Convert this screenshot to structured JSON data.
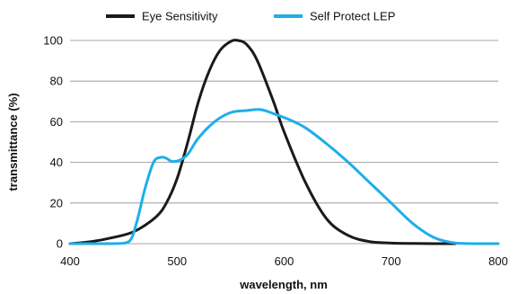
{
  "chart_data": {
    "type": "line",
    "title": "",
    "xlabel": "wavelength, nm",
    "ylabel": "transmittance (%)",
    "xlim": [
      400,
      800
    ],
    "ylim": [
      0,
      100
    ],
    "x_ticks": [
      400,
      500,
      600,
      700,
      800
    ],
    "y_ticks": [
      0,
      20,
      40,
      60,
      80,
      100
    ],
    "grid": "horizontal",
    "legend": "top",
    "series": [
      {
        "name": "Eye Sensitivity",
        "color": "#1a1a1a",
        "x": [
          400,
          420,
          440,
          460,
          480,
          490,
          500,
          510,
          520,
          530,
          540,
          550,
          557,
          565,
          575,
          590,
          600,
          620,
          640,
          660,
          680,
          700,
          720,
          740,
          760
        ],
        "y": [
          0,
          1,
          3,
          6,
          13,
          20,
          32,
          50,
          70,
          85,
          95,
          99.5,
          100,
          98,
          90,
          70,
          55,
          30,
          12,
          4,
          1,
          0.3,
          0.1,
          0,
          0
        ]
      },
      {
        "name": "Self Protect LEP",
        "color": "#1eaee8",
        "x": [
          400,
          440,
          455,
          462,
          470,
          478,
          485,
          490,
          495,
          502,
          510,
          520,
          535,
          550,
          565,
          578,
          590,
          605,
          620,
          640,
          660,
          680,
          700,
          720,
          740,
          760,
          780,
          800
        ],
        "y": [
          0,
          0,
          1,
          10,
          27,
          40,
          42.5,
          42,
          40.5,
          41,
          44,
          52,
          60,
          64.5,
          65.5,
          66,
          64,
          61,
          57,
          49,
          40,
          30,
          20,
          10,
          3,
          0.3,
          0,
          0
        ]
      }
    ]
  }
}
